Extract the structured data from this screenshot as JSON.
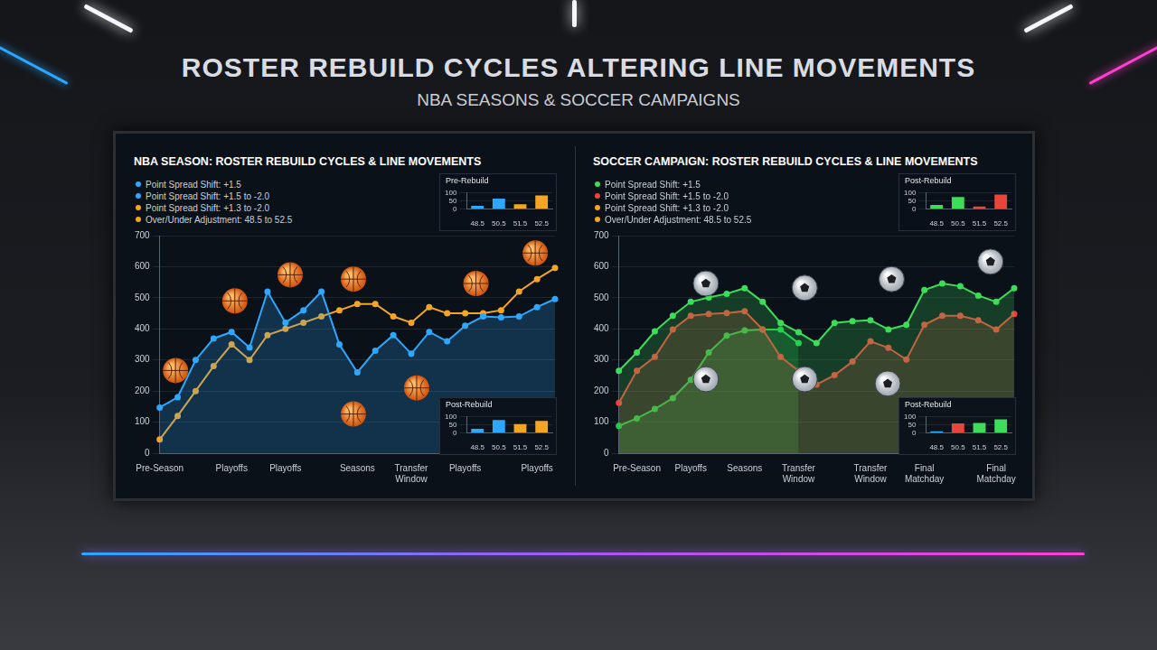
{
  "title": "ROSTER REBUILD CYCLES ALTERING LINE MOVEMENTS",
  "subtitle": "NBA SEASONS & SOCCER CAMPAIGNS",
  "chart_data": [
    {
      "type": "line",
      "title": "NBA SEASON: ROSTER REBUILD CYCLES & LINE MOVEMENTS",
      "annotations": [
        {
          "text": "Point Spread Shift: +1.5",
          "color": "#2ea8ff"
        },
        {
          "text": "Point Spread Shift: +1.5 to -2.0",
          "color": "#2ea8ff"
        },
        {
          "text": "Point Spread Shift: +1.3 to -2.0",
          "color": "#f5a524"
        },
        {
          "text": "Over/Under Adjustment: 48.5 to 52.5",
          "color": "#f5a524"
        }
      ],
      "categories": [
        "Pre-Season",
        null,
        null,
        null,
        "Playoffs",
        null,
        null,
        "Playoffs",
        null,
        null,
        null,
        "Seasons",
        null,
        null,
        "Transfer Window",
        null,
        null,
        "Playoffs",
        null,
        null,
        null,
        "Playoffs",
        null
      ],
      "series": [
        {
          "color": "#2ea8ff",
          "type": "area",
          "marker": "circle",
          "values": [
            147,
            180,
            300,
            369,
            390,
            340,
            520,
            420,
            460,
            520,
            350,
            260,
            330,
            380,
            320,
            390,
            360,
            410,
            440,
            437,
            440,
            470,
            496
          ]
        },
        {
          "color": "#f5a524",
          "type": "line",
          "marker": "circle",
          "values": [
            44,
            120,
            200,
            280,
            350,
            300,
            380,
            400,
            420,
            440,
            460,
            480,
            480,
            440,
            420,
            470,
            450,
            450,
            450,
            460,
            520,
            560,
            596
          ]
        }
      ],
      "ylim": [
        0,
        700
      ],
      "yticks": [
        0,
        100,
        200,
        300,
        400,
        500,
        600,
        700
      ],
      "grid": true,
      "insets": [
        {
          "type": "bar",
          "title": "Pre-Rebuild",
          "categories": [
            "48.5",
            "50.5",
            "51.5",
            "52.5"
          ],
          "values": [
            20,
            65,
            30,
            85
          ],
          "colors": [
            "#2ea8ff",
            "#2ea8ff",
            "#f5a524",
            "#f5a524"
          ],
          "ylim": [
            0,
            100
          ],
          "yticks": [
            0,
            50,
            100
          ],
          "grid": true
        },
        {
          "type": "bar",
          "title": "Post-Rebuild",
          "categories": [
            "48.5",
            "50.5",
            "51.5",
            "52.5"
          ],
          "values": [
            25,
            80,
            55,
            75
          ],
          "colors": [
            "#2ea8ff",
            "#2ea8ff",
            "#f5a524",
            "#f5a524"
          ],
          "ylim": [
            0,
            100
          ],
          "yticks": [
            0,
            50,
            100
          ],
          "grid": true
        }
      ]
    },
    {
      "type": "line",
      "title": "SOCCER CAMPAIGN: ROSTER REBUILD CYCLES & LINE MOVEMENTS",
      "annotations": [
        {
          "text": "Point Spread Shift: +1.5",
          "color": "#3ddc5a"
        },
        {
          "text": "Point Spread Shift: +1.5 to -2.0",
          "color": "#e8453c"
        },
        {
          "text": "Point Spread Shift: +1.3 to -2.0",
          "color": "#f5a524"
        },
        {
          "text": "Over/Under Adjustment: 48.5 to 52.5",
          "color": "#f5a524"
        }
      ],
      "categories": [
        null,
        "Pre-Season",
        null,
        null,
        "Playoffs",
        null,
        null,
        "Seasons",
        null,
        null,
        "Transfer Window",
        null,
        null,
        null,
        "Transfer Window",
        null,
        null,
        "Final Matchday",
        null,
        null,
        null,
        "Final Matchday",
        null
      ],
      "series": [
        {
          "color": "#3ddc5a",
          "type": "area",
          "marker": "circle",
          "values": [
            265,
            324,
            392,
            442,
            487,
            501,
            513,
            531,
            487,
            419,
            389,
            354,
            419,
            425,
            428,
            398,
            413,
            525,
            546,
            537,
            507,
            487,
            531
          ]
        },
        {
          "color": "#e8453c",
          "type": "area",
          "marker": "circle",
          "values": [
            162,
            265,
            310,
            398,
            442,
            448,
            451,
            457,
            398,
            310,
            265,
            221,
            251,
            295,
            360,
            339,
            301,
            413,
            442,
            442,
            428,
            398,
            448
          ]
        },
        {
          "color": "#1fcf4a",
          "type": "area",
          "marker": "circle",
          "values": [
            88,
            112,
            142,
            177,
            236,
            324,
            378,
            395,
            398,
            398,
            354,
            null,
            null,
            null,
            null,
            null,
            null,
            null,
            null,
            null,
            null,
            null,
            null
          ]
        }
      ],
      "ylim": [
        0,
        700
      ],
      "yticks": [
        0,
        100,
        200,
        300,
        400,
        500,
        600,
        700
      ],
      "grid": true,
      "insets": [
        {
          "type": "bar",
          "title": "Post-Rebuild",
          "categories": [
            "48.5",
            "50.5",
            "51.5",
            "52.5"
          ],
          "values": [
            25,
            75,
            15,
            90
          ],
          "colors": [
            "#3ddc5a",
            "#3ddc5a",
            "#e8453c",
            "#e8453c"
          ],
          "ylim": [
            0,
            100
          ],
          "yticks": [
            0,
            50,
            100
          ],
          "grid": true
        },
        {
          "type": "bar",
          "title": "Post-Rebuild",
          "categories": [
            "48.5",
            "50.5",
            "51.5",
            "52.5"
          ],
          "values": [
            10,
            60,
            62,
            85
          ],
          "colors": [
            "#2ea8ff",
            "#e8453c",
            "#3ddc5a",
            "#3ddc5a"
          ],
          "ylim": [
            0,
            100
          ],
          "yticks": [
            0,
            50,
            100
          ],
          "grid": true
        }
      ]
    }
  ]
}
